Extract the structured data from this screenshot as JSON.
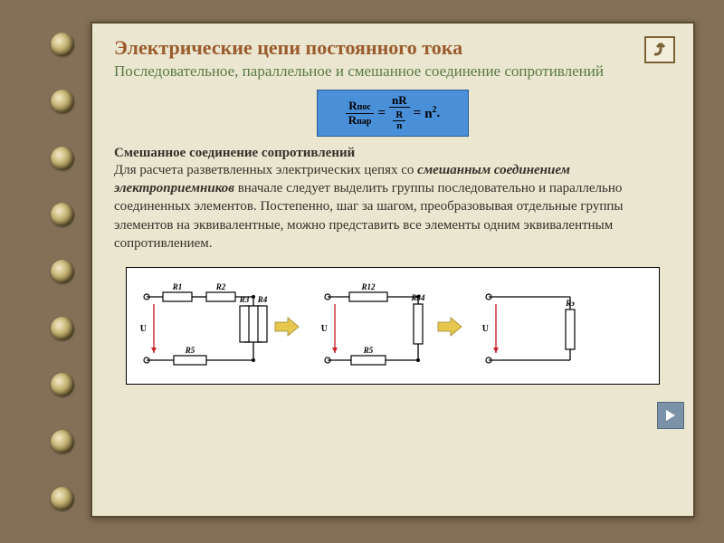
{
  "colors": {
    "page_bg": "#847057",
    "slide_bg": "#eae6d0",
    "slide_border": "#5c4a30",
    "title_color": "#9a5b2d",
    "subtitle_color": "#5a7a43",
    "text_color": "#35322a",
    "formula_bg": "#4a90d9",
    "formula_border": "#2d5a8f",
    "diagram_bg": "#ffffff"
  },
  "title": "Электрические цепи постоянного тока",
  "subtitle": "Последовательное, параллельное и смешанное соединение сопротивлений",
  "formula": {
    "lhs_num": "Rпос",
    "lhs_den": "Rпар",
    "mid_num": "nR",
    "mid_den_num": "R",
    "mid_den_den": "n",
    "rhs": "n²",
    "suffix": "."
  },
  "section_heading": "Смешанное соединение сопротивлений",
  "paragraph_pre": "Для расчета разветвленных электрических цепях со ",
  "paragraph_em": "смешанным соединением электроприемников",
  "paragraph_post": " вначале следует выделить группы последовательно и параллельно соединенных элементов. Постепенно, шаг за шагом, преобразовывая отдельные группы элементов на эквивалентные, можно представить все элементы одним эквивалентным сопротивлением.",
  "diagram": {
    "type": "circuit-flow",
    "stages": [
      {
        "top": [
          "R1",
          "R2"
        ],
        "right_parallel": [
          "R3",
          "R4"
        ],
        "bottom": [
          "R5"
        ],
        "voltage": "U"
      },
      {
        "top": [
          "R12"
        ],
        "right_parallel": [
          "R34"
        ],
        "bottom": [
          "R5"
        ],
        "voltage": "U"
      },
      {
        "single": "Rэ",
        "voltage": "U"
      }
    ],
    "label_fontsize": 9,
    "wire_color": "#000000",
    "arrow_color": "#e6c84e",
    "u_arrow_color": "#c6232a"
  },
  "nav": {
    "back": "back",
    "next": "next"
  },
  "pagefoot": ""
}
